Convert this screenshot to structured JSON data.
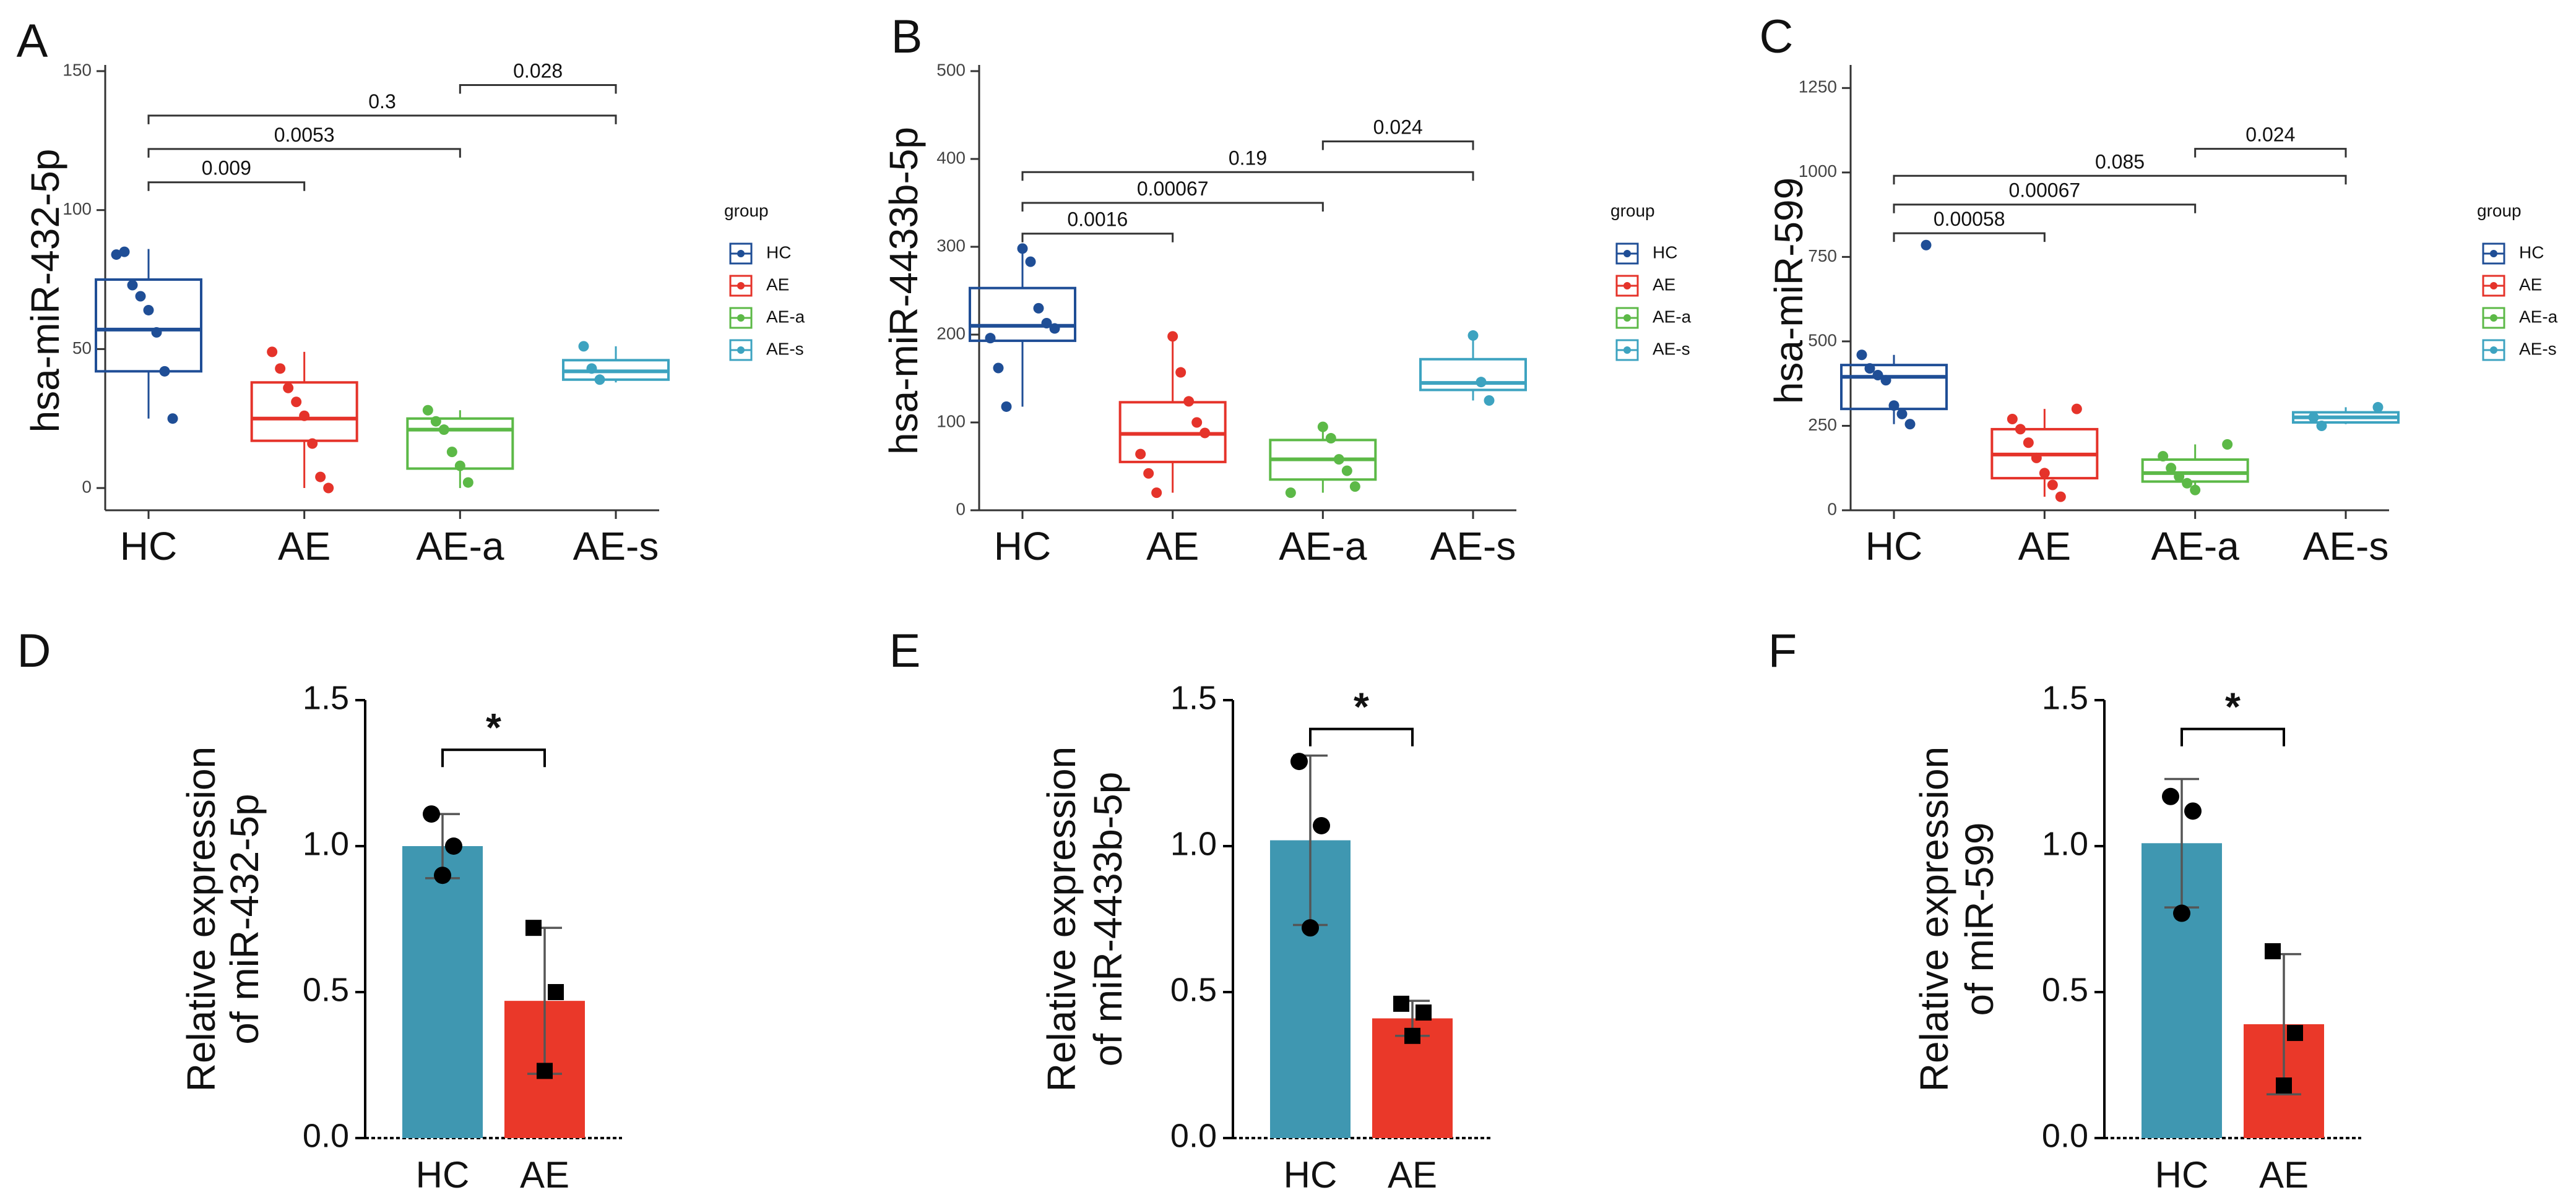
{
  "chart_data": [
    {
      "panel": "A",
      "type": "box",
      "ylabel": "hsa-miR-432-5p",
      "ylim": [
        -8,
        150
      ],
      "yticks": [
        0,
        50,
        100,
        150
      ],
      "ytick_labels": [
        "0",
        "50",
        "100",
        "150"
      ],
      "categories": [
        "HC",
        "AE",
        "AE-a",
        "AE-s"
      ],
      "legend": {
        "title": "group",
        "entries": [
          "HC",
          "AE",
          "AE-a",
          "AE-s"
        ],
        "placement": "right"
      },
      "boxes": [
        {
          "group": "HC",
          "min": 25,
          "q1": 42,
          "median": 57,
          "q3": 75,
          "max": 86
        },
        {
          "group": "AE",
          "min": 0,
          "q1": 17,
          "median": 25,
          "q3": 38,
          "max": 49
        },
        {
          "group": "AE-a",
          "min": 0,
          "q1": 7,
          "median": 21,
          "q3": 25,
          "max": 28
        },
        {
          "group": "AE-s",
          "min": 38,
          "q1": 39,
          "median": 42,
          "q3": 46,
          "max": 51
        }
      ],
      "points": [
        [
          84,
          85,
          73,
          69,
          64,
          56,
          42,
          25
        ],
        [
          49,
          43,
          36,
          31,
          26,
          16,
          4,
          0
        ],
        [
          28,
          24,
          21,
          13,
          8,
          2
        ],
        [
          51,
          43,
          39
        ]
      ],
      "comparisons": [
        {
          "from": "HC",
          "to": "AE",
          "label": "0.009",
          "y": 110
        },
        {
          "from": "HC",
          "to": "AE-a",
          "label": "0.0053",
          "y": 122
        },
        {
          "from": "HC",
          "to": "AE-s",
          "label": "0.3",
          "y": 134
        },
        {
          "from": "AE-a",
          "to": "AE-s",
          "label": "0.028",
          "y": 145
        }
      ]
    },
    {
      "panel": "B",
      "type": "box",
      "ylabel": "hsa-miR-4433b-5p",
      "ylim": [
        0,
        500
      ],
      "yticks": [
        0,
        100,
        200,
        300,
        400,
        500
      ],
      "ytick_labels": [
        "0",
        "100",
        "200",
        "300",
        "400",
        "500"
      ],
      "categories": [
        "HC",
        "AE",
        "AE-a",
        "AE-s"
      ],
      "legend": {
        "title": "group",
        "entries": [
          "HC",
          "AE",
          "AE-a",
          "AE-s"
        ],
        "placement": "right"
      },
      "boxes": [
        {
          "group": "HC",
          "min": 118,
          "q1": 193,
          "median": 210,
          "q3": 253,
          "max": 300
        },
        {
          "group": "AE",
          "min": 20,
          "q1": 55,
          "median": 87,
          "q3": 123,
          "max": 198
        },
        {
          "group": "AE-a",
          "min": 20,
          "q1": 35,
          "median": 58,
          "q3": 80,
          "max": 95
        },
        {
          "group": "AE-s",
          "min": 125,
          "q1": 137,
          "median": 145,
          "q3": 172,
          "max": 200
        }
      ],
      "points": [
        [
          298,
          283,
          230,
          213,
          207,
          196,
          162,
          118
        ],
        [
          198,
          157,
          124,
          100,
          88,
          64,
          42,
          20
        ],
        [
          95,
          82,
          58,
          45,
          27,
          20
        ],
        [
          199,
          146,
          125
        ]
      ],
      "comparisons": [
        {
          "from": "HC",
          "to": "AE",
          "label": "0.0016",
          "y": 315
        },
        {
          "from": "HC",
          "to": "AE-a",
          "label": "0.00067",
          "y": 350
        },
        {
          "from": "HC",
          "to": "AE-s",
          "label": "0.19",
          "y": 385
        },
        {
          "from": "AE-a",
          "to": "AE-s",
          "label": "0.024",
          "y": 420
        }
      ]
    },
    {
      "panel": "C",
      "type": "box",
      "ylabel": "hsa-miR-599",
      "ylim": [
        0,
        1300
      ],
      "yticks": [
        0,
        250,
        500,
        750,
        1000,
        1250
      ],
      "ytick_labels": [
        "0",
        "250",
        "500",
        "750",
        "1000",
        "1250"
      ],
      "categories": [
        "HC",
        "AE",
        "AE-a",
        "AE-s"
      ],
      "legend": {
        "title": "group",
        "entries": [
          "HC",
          "AE",
          "AE-a",
          "AE-s"
        ],
        "placement": "right"
      },
      "boxes": [
        {
          "group": "HC",
          "min": 255,
          "q1": 300,
          "median": 395,
          "q3": 430,
          "max": 460
        },
        {
          "group": "AE",
          "min": 40,
          "q1": 95,
          "median": 165,
          "q3": 240,
          "max": 300
        },
        {
          "group": "AE-a",
          "min": 75,
          "q1": 85,
          "median": 110,
          "q3": 150,
          "max": 195
        },
        {
          "group": "AE-s",
          "min": 255,
          "q1": 260,
          "median": 275,
          "q3": 290,
          "max": 305
        }
      ],
      "points": [
        [
          785,
          460,
          420,
          400,
          385,
          310,
          285,
          255
        ],
        [
          300,
          270,
          240,
          200,
          155,
          110,
          75,
          40
        ],
        [
          195,
          160,
          125,
          100,
          80,
          60
        ],
        [
          305,
          275,
          250
        ]
      ],
      "comparisons": [
        {
          "from": "HC",
          "to": "AE",
          "label": "0.00058",
          "y": 820
        },
        {
          "from": "HC",
          "to": "AE-a",
          "label": "0.00067",
          "y": 905
        },
        {
          "from": "HC",
          "to": "AE-s",
          "label": "0.085",
          "y": 990
        },
        {
          "from": "AE-a",
          "to": "AE-s",
          "label": "0.024",
          "y": 1070
        }
      ]
    },
    {
      "panel": "D",
      "type": "bar",
      "ylabel": [
        "Relative expression",
        "of miR-432-5p"
      ],
      "ylim": [
        0,
        1.5
      ],
      "yticks": [
        0,
        0.5,
        1,
        1.5
      ],
      "ytick_labels": [
        "0.0",
        "0.5",
        "1.0",
        "1.5"
      ],
      "categories": [
        "HC",
        "AE"
      ],
      "values": [
        1.0,
        0.47
      ],
      "errors": [
        0.11,
        0.25
      ],
      "points": [
        [
          1.11,
          1.0,
          0.9
        ],
        [
          0.72,
          0.5,
          0.23
        ]
      ],
      "marker": [
        "circle",
        "square"
      ],
      "significance": "*"
    },
    {
      "panel": "E",
      "type": "bar",
      "ylabel": [
        "Relative expression",
        "of miR-4433b-5p"
      ],
      "ylim": [
        0,
        1.5
      ],
      "yticks": [
        0,
        0.5,
        1,
        1.5
      ],
      "ytick_labels": [
        "0.0",
        "0.5",
        "1.0",
        "1.5"
      ],
      "categories": [
        "HC",
        "AE"
      ],
      "values": [
        1.02,
        0.41
      ],
      "errors": [
        0.29,
        0.06
      ],
      "points": [
        [
          1.29,
          1.07,
          0.72
        ],
        [
          0.46,
          0.43,
          0.35
        ]
      ],
      "marker": [
        "circle",
        "square"
      ],
      "significance": "*"
    },
    {
      "panel": "F",
      "type": "bar",
      "ylabel": [
        "Relative expression",
        "of miR-599"
      ],
      "ylim": [
        0,
        1.5
      ],
      "yticks": [
        0,
        0.5,
        1,
        1.5
      ],
      "ytick_labels": [
        "0.0",
        "0.5",
        "1.0",
        "1.5"
      ],
      "categories": [
        "HC",
        "AE"
      ],
      "values": [
        1.01,
        0.39
      ],
      "errors": [
        0.22,
        0.24
      ],
      "points": [
        [
          1.17,
          1.12,
          0.77
        ],
        [
          0.64,
          0.36,
          0.18
        ]
      ],
      "marker": [
        "circle",
        "square"
      ],
      "significance": "*"
    }
  ],
  "colors": {
    "HC": "#1f4e96",
    "AE": "#e5332a",
    "AE-a": "#5cb947",
    "AE-s": "#3da3c0",
    "bar_HC": "#3f97b1",
    "bar_AE": "#ea3829",
    "axis": "#333333",
    "text": "#111111"
  }
}
